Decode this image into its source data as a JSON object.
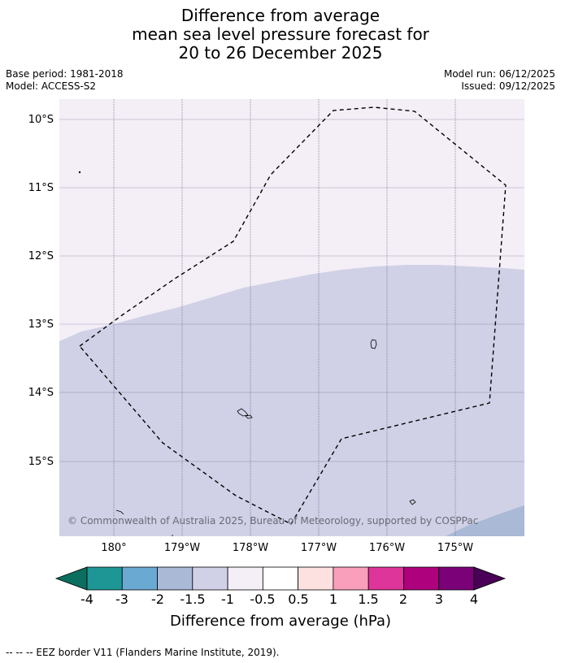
{
  "title": {
    "line1": "Difference from average",
    "line2": "mean sea level pressure forecast for",
    "line3": "20 to 26 December 2025"
  },
  "meta": {
    "base_period": "Base period: 1981-2018",
    "model": "Model: ACCESS-S2",
    "model_run": "Model run: 06/12/2025",
    "issued": "Issued: 09/12/2025"
  },
  "map": {
    "lat_labels": [
      "10°S",
      "11°S",
      "12°S",
      "13°S",
      "14°S",
      "15°S"
    ],
    "lon_labels": [
      "180°",
      "179°W",
      "178°W",
      "177°W",
      "176°W",
      "175°W"
    ],
    "copyright": "© Commonwealth of Australia 2025, Bureau of Meteorology, supported by COSPPac",
    "colors": {
      "class_-1_to_-0.5": "#f4eef7",
      "class_-1.5_to_-1": "#d0d1e6",
      "class_-2_to_-1.5": "#a9b9d6",
      "gridline": "#555577",
      "eez_border": "#000000"
    }
  },
  "colorbar": {
    "title": "Difference from average (hPa)",
    "labels": [
      "-4",
      "-3",
      "-2",
      "-1.5",
      "-1",
      "-0.5",
      "0.5",
      "1",
      "1.5",
      "2",
      "3",
      "4"
    ],
    "colors": [
      "#0b6e5e",
      "#1e9696",
      "#6aaad2",
      "#a9b9d6",
      "#d0d1e6",
      "#f4eef7",
      "#ffffff",
      "#fde0e0",
      "#f99fbb",
      "#dd3599",
      "#ad017e",
      "#7a0177",
      "#490056"
    ]
  },
  "footer": {
    "legend": "--  --  -- EEZ border V11 (Flanders Marine Institute, 2019)."
  }
}
